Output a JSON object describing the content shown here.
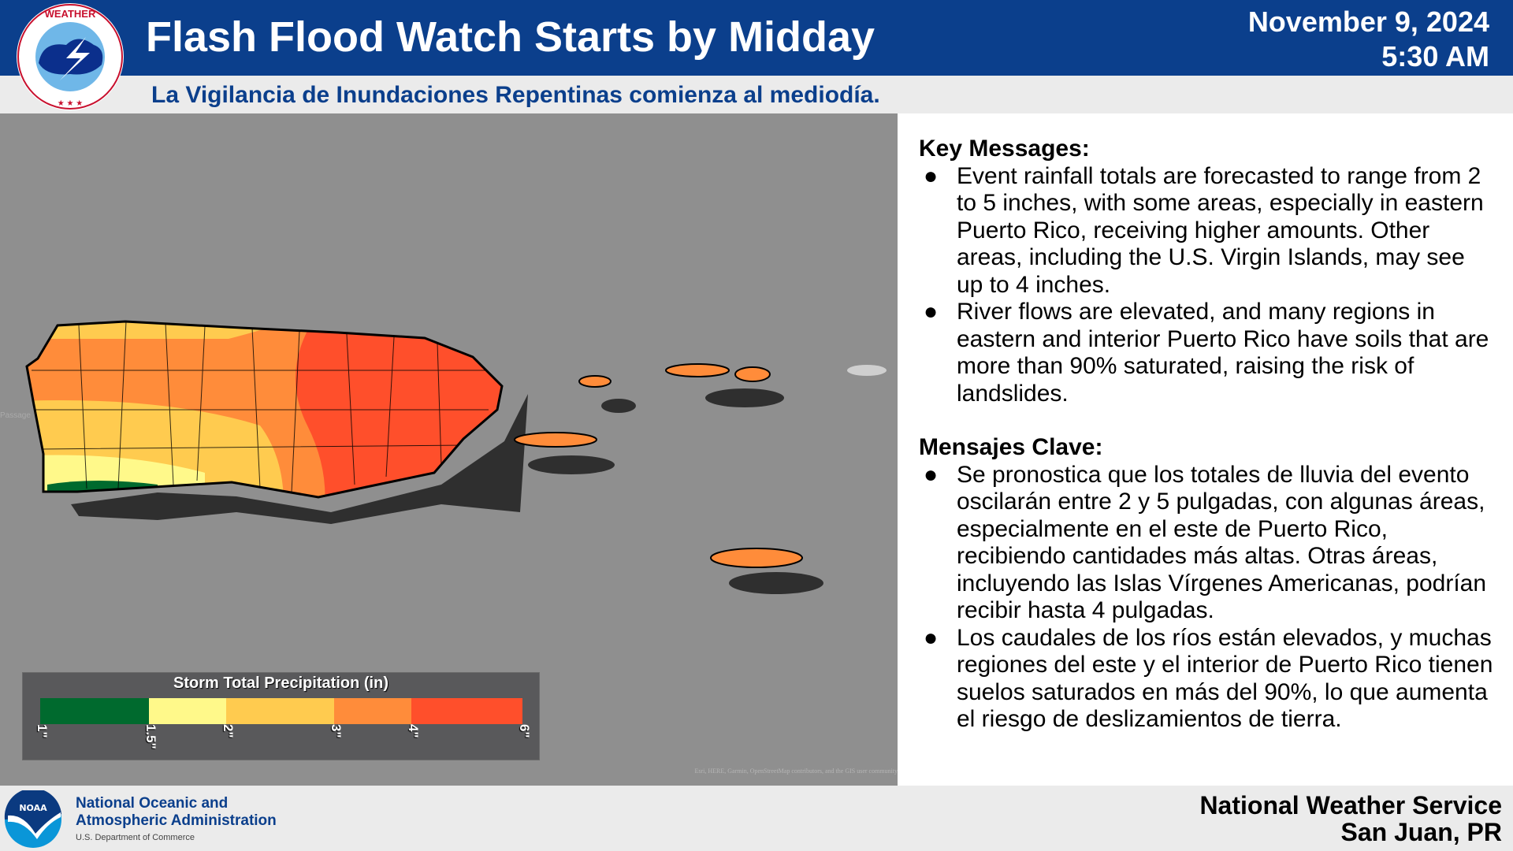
{
  "header": {
    "title": "Flash Flood Watch Starts by Midday",
    "date": "November 9, 2024",
    "time": "5:30 AM",
    "subtitle": "La Vigilancia de Inundaciones Repentinas comienza al mediodía.",
    "logo_text": "NATIONAL WEATHER SERVICE"
  },
  "map": {
    "attribution": "Esri, HERE, Garmin, OpenStreetMap contributors, and the GIS user community",
    "water_label": "Passage",
    "legend": {
      "title": "Storm Total Precipitation (in)",
      "ticks": [
        "1\"",
        "1.5\"",
        "2\"",
        "3\"",
        "4\"",
        "6\""
      ],
      "colors": [
        "#006a2e",
        "#fff98a",
        "#ffcb4f",
        "#ff8c3a",
        "#ff4f2b"
      ]
    }
  },
  "panel": {
    "en_heading": "Key Messages:",
    "en_bullets": [
      "Event rainfall totals are forecasted to range from 2 to 5 inches, with some areas, especially in eastern Puerto Rico, receiving higher amounts. Other areas, including the U.S. Virgin Islands, may see up to 4 inches.",
      "River flows are elevated, and many regions in eastern and interior Puerto Rico have soils that are more than 90% saturated, raising the risk of landslides."
    ],
    "es_heading": "Mensajes Clave:",
    "es_bullets": [
      "Se pronostica que los totales de lluvia del evento oscilarán entre 2 y 5 pulgadas, con algunas áreas, especialmente en el este de Puerto Rico, recibiendo cantidades más altas. Otras áreas, incluyendo las Islas Vírgenes Americanas, podrían recibir hasta 4 pulgadas.",
      "Los caudales de los ríos están elevados, y muchas regiones del este y el interior de Puerto Rico tienen suelos saturados en más del 90%, lo que aumenta el riesgo de deslizamientos de tierra."
    ],
    "bullet": "●"
  },
  "footer": {
    "noaa_line1": "National Oceanic and",
    "noaa_line2": "Atmospheric Administration",
    "noaa_line3": "U.S. Department of Commerce",
    "noaa_logo": "NOAA",
    "office_line1": "National Weather Service",
    "office_line2": "San Juan, PR"
  }
}
